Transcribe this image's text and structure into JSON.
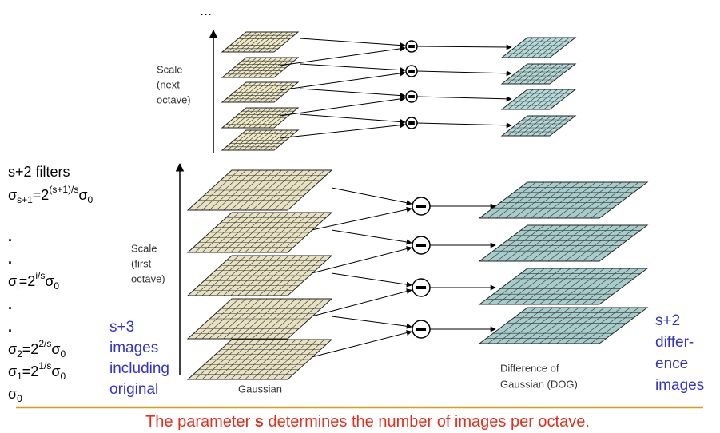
{
  "ellipsis": "...",
  "top_axis_label": [
    "Scale",
    "(next",
    "octave)"
  ],
  "bottom_axis_label": [
    "Scale",
    "(first",
    "octave)"
  ],
  "gaussian_label": "Gaussian",
  "dog_label": [
    "Difference of",
    "Gaussian (DOG)"
  ],
  "filters_heading": "s+2 filters",
  "formulas": [
    {
      "base": "σ",
      "sub": "s+1",
      "eq": "=2",
      "sup": "(s+1)/s",
      "tail": "σ",
      "tail_sub": "0"
    },
    {
      "dot": "."
    },
    {
      "dot": "."
    },
    {
      "base": "σ",
      "sub": "i",
      "eq": "=2",
      "sup": "i/s",
      "tail": "σ",
      "tail_sub": "0"
    },
    {
      "dot": "."
    },
    {
      "dot": "."
    },
    {
      "base": "σ",
      "sub": "2",
      "eq": "=2",
      "sup": "2/s",
      "tail": "σ",
      "tail_sub": "0"
    },
    {
      "base": "σ",
      "sub": "1",
      "eq": "=2",
      "sup": "1/s",
      "tail": "σ",
      "tail_sub": "0"
    },
    {
      "base": "σ",
      "sub": "0"
    }
  ],
  "gaussian_note": [
    "s+3",
    "images",
    "including",
    "original"
  ],
  "dog_note": [
    "s+2",
    "differ-",
    "ence",
    "images"
  ],
  "caption": {
    "before": "The parameter ",
    "bold": "s",
    "after": " determines the number of images per octave."
  }
}
